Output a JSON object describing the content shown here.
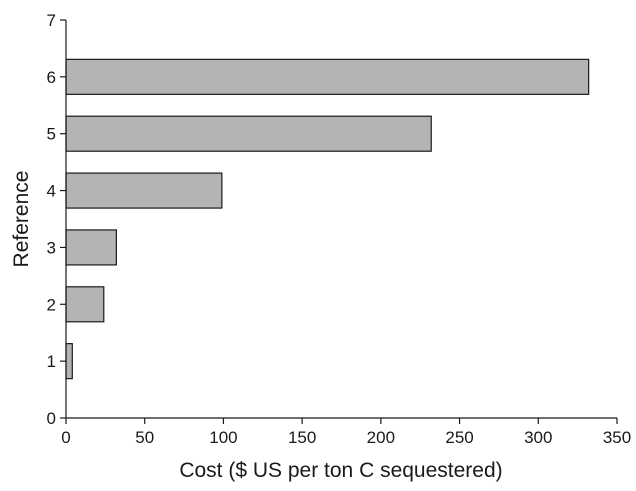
{
  "chart_data": {
    "type": "bar",
    "orientation": "horizontal",
    "xlabel": "Cost ($ US per ton C sequestered)",
    "ylabel": "Reference",
    "xlim": [
      0,
      350
    ],
    "ylim": [
      0,
      7
    ],
    "x_ticks": [
      "0",
      "50",
      "100",
      "150",
      "200",
      "250",
      "300",
      "350"
    ],
    "y_ticks": [
      "0",
      "1",
      "2",
      "3",
      "4",
      "5",
      "6",
      "7"
    ],
    "categories": [
      1,
      2,
      3,
      4,
      5,
      6
    ],
    "values": [
      4,
      24,
      32,
      99,
      232,
      332
    ],
    "grid": false,
    "legend": "none",
    "colors": {
      "bar_fill": "#b4b4b4",
      "bar_stroke": "#1a1a1a",
      "axis": "#1a1a1a"
    }
  }
}
